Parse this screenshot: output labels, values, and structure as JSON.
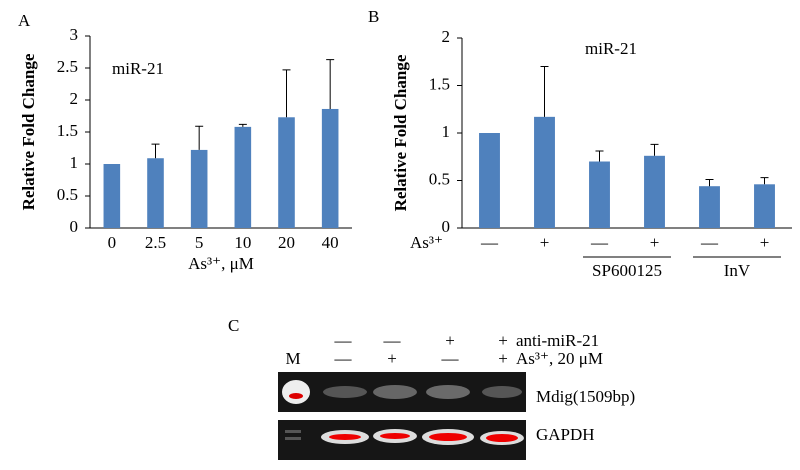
{
  "chart_data": [
    {
      "type": "bar",
      "panel": "A",
      "annotation": "miR-21",
      "ylabel": "Relative Fold Change",
      "xlabel": "As³⁺, μM",
      "categories": [
        "0",
        "2.5",
        "5",
        "10",
        "20",
        "40"
      ],
      "values": [
        1,
        1.09,
        1.22,
        1.58,
        1.73,
        1.86
      ],
      "errors": [
        null,
        0.22,
        0.37,
        0.04,
        0.74,
        0.77
      ],
      "color": "#4f81bd",
      "ylim": [
        0,
        3
      ],
      "yticks": [
        0,
        0.5,
        1,
        1.5,
        2,
        2.5,
        3
      ]
    },
    {
      "type": "bar",
      "panel": "B",
      "annotation": "miR-21",
      "ylabel": "Relative Fold Change",
      "categories": [
        null,
        null,
        null,
        null,
        null,
        null
      ],
      "values": [
        1,
        1.17,
        0.7,
        0.76,
        0.44,
        0.46
      ],
      "errors": [
        null,
        0.53,
        0.11,
        0.12,
        0.07,
        0.07
      ],
      "color": "#4f81bd",
      "ylim": [
        0,
        2
      ],
      "yticks": [
        0,
        0.5,
        1,
        1.5,
        2
      ],
      "treatment": {
        "label": "As³⁺",
        "marks": [
          "—",
          "+",
          "—",
          "+",
          "—",
          "+"
        ]
      },
      "groups": [
        "SP600125",
        "InV"
      ]
    }
  ],
  "gel": {
    "panel": "C",
    "marker": "M",
    "rows": [
      {
        "label": "anti-miR-21",
        "marks": [
          "—",
          "—",
          "+",
          "+"
        ]
      },
      {
        "label": "As³⁺, 20 μM",
        "marks": [
          "—",
          "+",
          "—",
          "+"
        ]
      }
    ],
    "bands": [
      "Mdig(1509bp)",
      "GAPDH"
    ]
  }
}
